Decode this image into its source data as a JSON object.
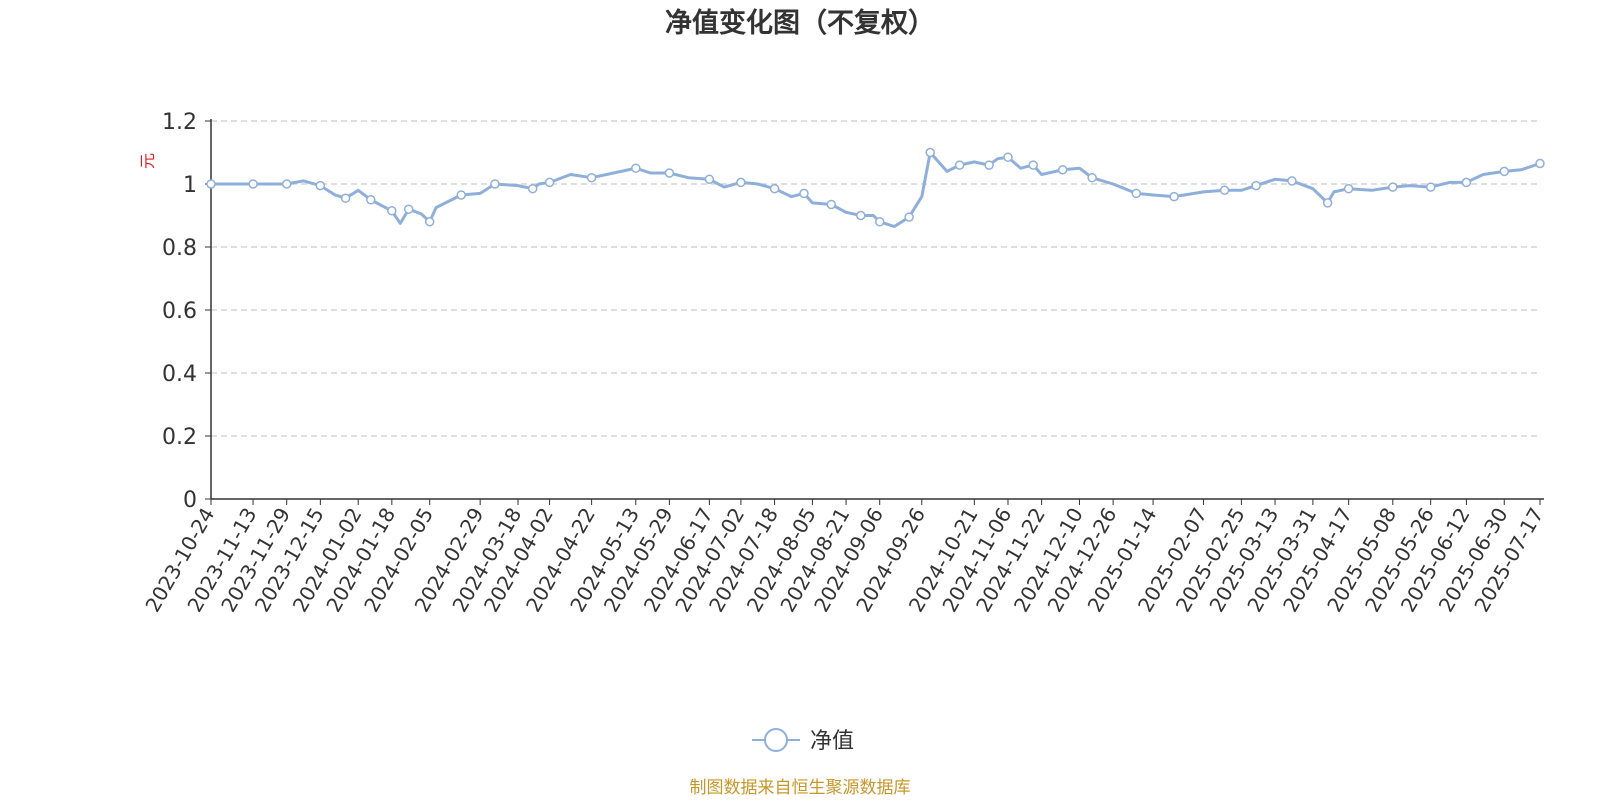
{
  "chart_data": {
    "type": "line",
    "title": "净值变化图（不复权）",
    "ylabel": "元",
    "ylim": [
      0,
      1.2
    ],
    "yticks": [
      "0",
      "0.2",
      "0.4",
      "0.6",
      "0.8",
      "1",
      "1.2"
    ],
    "grid": true,
    "legend": "bottom-center",
    "footer": "制图数据来自恒生聚源数据库",
    "x_tick_labels": [
      "2023-10-24",
      "2023-11-13",
      "2023-11-29",
      "2023-12-15",
      "2024-01-02",
      "2024-01-18",
      "2024-02-05",
      "2024-02-29",
      "2024-03-18",
      "2024-04-02",
      "2024-04-22",
      "2024-05-13",
      "2024-05-29",
      "2024-06-17",
      "2024-07-02",
      "2024-07-18",
      "2024-08-05",
      "2024-08-21",
      "2024-09-06",
      "2024-09-26",
      "2024-10-21",
      "2024-11-06",
      "2024-11-22",
      "2024-12-10",
      "2024-12-26",
      "2025-01-14",
      "2025-02-07",
      "2025-02-25",
      "2025-03-13",
      "2025-03-31",
      "2025-04-17",
      "2025-05-08",
      "2025-05-26",
      "2025-06-12",
      "2025-06-30",
      "2025-07-17"
    ],
    "series": [
      {
        "name": "净值",
        "color": "#8fafdb",
        "points": [
          [
            "2023-10-24",
            1.0
          ],
          [
            "2023-11-01",
            1.0
          ],
          [
            "2023-11-13",
            1.0
          ],
          [
            "2023-11-21",
            1.0
          ],
          [
            "2023-11-29",
            1.0
          ],
          [
            "2023-12-07",
            1.01
          ],
          [
            "2023-12-15",
            0.995
          ],
          [
            "2023-12-22",
            0.965
          ],
          [
            "2023-12-27",
            0.955
          ],
          [
            "2024-01-02",
            0.98
          ],
          [
            "2024-01-08",
            0.95
          ],
          [
            "2024-01-15",
            0.925
          ],
          [
            "2024-01-18",
            0.915
          ],
          [
            "2024-01-22",
            0.875
          ],
          [
            "2024-01-26",
            0.92
          ],
          [
            "2024-02-01",
            0.905
          ],
          [
            "2024-02-05",
            0.88
          ],
          [
            "2024-02-08",
            0.925
          ],
          [
            "2024-02-20",
            0.965
          ],
          [
            "2024-02-29",
            0.97
          ],
          [
            "2024-03-07",
            1.0
          ],
          [
            "2024-03-18",
            0.995
          ],
          [
            "2024-03-25",
            0.985
          ],
          [
            "2024-03-28",
            1.0
          ],
          [
            "2024-04-02",
            1.005
          ],
          [
            "2024-04-12",
            1.03
          ],
          [
            "2024-04-22",
            1.02
          ],
          [
            "2024-05-06",
            1.04
          ],
          [
            "2024-05-13",
            1.05
          ],
          [
            "2024-05-20",
            1.035
          ],
          [
            "2024-05-29",
            1.035
          ],
          [
            "2024-06-07",
            1.02
          ],
          [
            "2024-06-17",
            1.015
          ],
          [
            "2024-06-24",
            0.99
          ],
          [
            "2024-07-02",
            1.005
          ],
          [
            "2024-07-10",
            1.0
          ],
          [
            "2024-07-18",
            0.985
          ],
          [
            "2024-07-26",
            0.96
          ],
          [
            "2024-08-01",
            0.97
          ],
          [
            "2024-08-05",
            0.94
          ],
          [
            "2024-08-14",
            0.935
          ],
          [
            "2024-08-21",
            0.91
          ],
          [
            "2024-08-28",
            0.9
          ],
          [
            "2024-09-03",
            0.9
          ],
          [
            "2024-09-06",
            0.88
          ],
          [
            "2024-09-13",
            0.865
          ],
          [
            "2024-09-20",
            0.895
          ],
          [
            "2024-09-26",
            0.96
          ],
          [
            "2024-09-30",
            1.1
          ],
          [
            "2024-10-08",
            1.04
          ],
          [
            "2024-10-14",
            1.06
          ],
          [
            "2024-10-21",
            1.07
          ],
          [
            "2024-10-28",
            1.06
          ],
          [
            "2024-11-01",
            1.08
          ],
          [
            "2024-11-06",
            1.085
          ],
          [
            "2024-11-12",
            1.05
          ],
          [
            "2024-11-18",
            1.06
          ],
          [
            "2024-11-22",
            1.03
          ],
          [
            "2024-12-02",
            1.045
          ],
          [
            "2024-12-10",
            1.05
          ],
          [
            "2024-12-16",
            1.02
          ],
          [
            "2024-12-26",
            1.0
          ],
          [
            "2025-01-06",
            0.97
          ],
          [
            "2025-01-14",
            0.965
          ],
          [
            "2025-01-24",
            0.96
          ],
          [
            "2025-02-07",
            0.975
          ],
          [
            "2025-02-17",
            0.98
          ],
          [
            "2025-02-25",
            0.98
          ],
          [
            "2025-03-04",
            0.995
          ],
          [
            "2025-03-13",
            1.015
          ],
          [
            "2025-03-21",
            1.01
          ],
          [
            "2025-03-31",
            0.985
          ],
          [
            "2025-04-07",
            0.94
          ],
          [
            "2025-04-10",
            0.975
          ],
          [
            "2025-04-17",
            0.985
          ],
          [
            "2025-04-28",
            0.98
          ],
          [
            "2025-05-08",
            0.99
          ],
          [
            "2025-05-16",
            0.995
          ],
          [
            "2025-05-26",
            0.99
          ],
          [
            "2025-06-04",
            1.005
          ],
          [
            "2025-06-12",
            1.005
          ],
          [
            "2025-06-20",
            1.03
          ],
          [
            "2025-06-30",
            1.04
          ],
          [
            "2025-07-08",
            1.045
          ],
          [
            "2025-07-17",
            1.065
          ]
        ]
      }
    ]
  }
}
